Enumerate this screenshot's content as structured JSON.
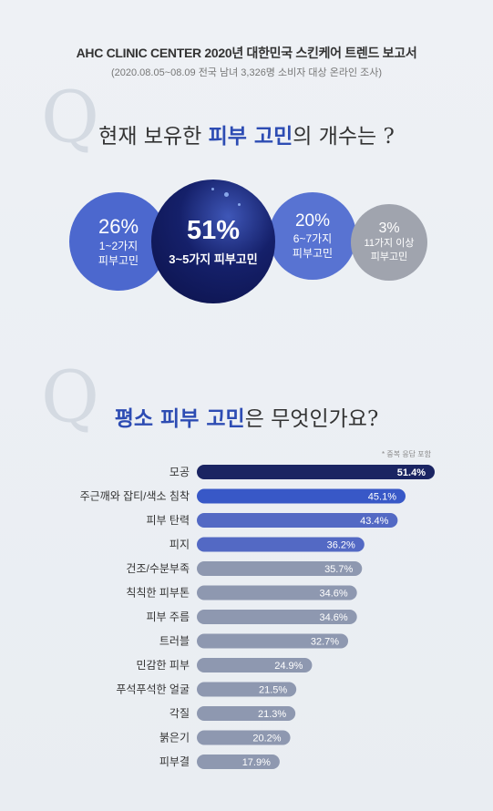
{
  "header": {
    "title": "AHC CLINIC CENTER 2020년 대한민국 스킨케어 트렌드 보고서",
    "subtitle": "(2020.08.05~08.09 전국 남녀 3,326명 소비자 대상 온라인 조사)"
  },
  "q_letter": "Q",
  "q1": {
    "text_before": "현재 보유한 ",
    "highlight": "피부 고민",
    "text_after": "의 개수는 ?"
  },
  "circles": [
    {
      "pct": "26%",
      "line1": "1~2가지",
      "line2": "피부고민"
    },
    {
      "pct": "51%",
      "line1": "3~5가지 피부고민",
      "line2": ""
    },
    {
      "pct": "20%",
      "line1": "6~7가지",
      "line2": "피부고민"
    },
    {
      "pct": "3%",
      "line1": "11가지 이상",
      "line2": "피부고민"
    }
  ],
  "q2": {
    "highlight": "평소 피부 고민",
    "text_after": "은 무엇인가요?"
  },
  "note": "* 중복 응답 포함",
  "colors": {
    "bar_dark": "#1a2462",
    "bar_blue": "#3858c7",
    "bar_mid": "#5369c4",
    "bar_gray": "#8e98b0"
  },
  "chart_data": {
    "type": "bar",
    "orientation": "horizontal",
    "title": "",
    "xlabel": "",
    "ylabel": "",
    "xlim": [
      0,
      51.4
    ],
    "categories": [
      "모공",
      "주근깨와 잡티/색소 침착",
      "피부 탄력",
      "피지",
      "건조/수분부족",
      "칙칙한 피부톤",
      "피부 주름",
      "트러블",
      "민감한 피부",
      "푸석푸석한 얼굴",
      "각질",
      "붉은기",
      "피부결"
    ],
    "values": [
      51.4,
      45.1,
      43.4,
      36.2,
      35.7,
      34.6,
      34.6,
      32.7,
      24.9,
      21.5,
      21.3,
      20.2,
      17.9
    ],
    "value_labels": [
      "51.4%",
      "45.1%",
      "43.4%",
      "36.2%",
      "35.7%",
      "34.6%",
      "34.6%",
      "32.7%",
      "24.9%",
      "21.5%",
      "21.3%",
      "20.2%",
      "17.9%"
    ]
  }
}
